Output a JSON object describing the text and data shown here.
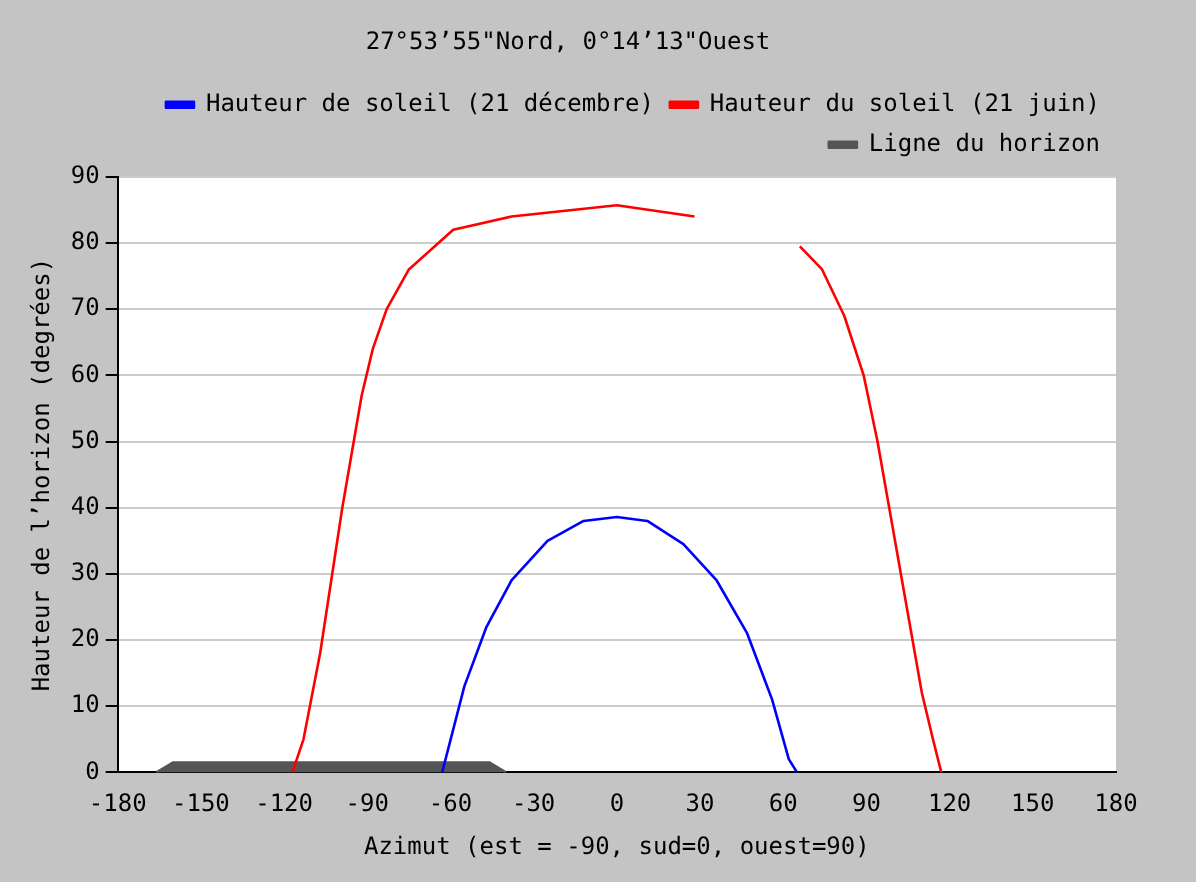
{
  "chart_data": {
    "type": "line",
    "title": "27°53’55\"Nord, 0°14’13\"Ouest",
    "xlabel": "Azimut (est = -90, sud=0, ouest=90)",
    "ylabel": "Hauteur de l’horizon (degrées)",
    "xlim": [
      -180,
      180
    ],
    "xticks": [
      -180,
      -150,
      -120,
      -90,
      -60,
      -30,
      0,
      30,
      60,
      90,
      120,
      150,
      180
    ],
    "ylim": [
      0,
      90
    ],
    "yticks": [
      0,
      10,
      20,
      30,
      40,
      50,
      60,
      70,
      80,
      90
    ],
    "grid": "y",
    "legend": "top right",
    "marker": "none",
    "line_style": "solid",
    "series": [
      {
        "name": "Hauteur de soleil (21 décembre)",
        "color": "#0000ff",
        "x": [
          -63,
          -55,
          -47,
          -38,
          -25,
          -12,
          0,
          11,
          24,
          36,
          47,
          56,
          62,
          65
        ],
        "values": [
          0,
          13,
          22,
          29,
          35,
          38,
          38.6,
          38,
          34.5,
          29,
          21,
          11,
          2,
          0
        ]
      },
      {
        "name": "Hauteur du soleil (21 juin)",
        "color": "#ff0000",
        "x": [
          -117,
          -113,
          -107,
          -99,
          -92,
          -88,
          -83,
          -75,
          -59,
          -38,
          0,
          28,
          45,
          66,
          74,
          82,
          89,
          94,
          102,
          110,
          114,
          117
        ],
        "values": [
          0,
          5,
          18,
          40,
          57,
          64,
          70,
          76,
          82,
          84,
          85.7,
          84,
          null,
          79.5,
          76,
          69,
          60,
          50,
          31,
          12,
          5,
          0
        ]
      },
      {
        "name": "Ligne du horizon",
        "type": "area",
        "color": "#555555",
        "x": [
          -166,
          -160,
          -150,
          -60,
          -46,
          -40
        ],
        "values": [
          0,
          1.5,
          1.5,
          1.5,
          1.5,
          0
        ]
      }
    ]
  }
}
